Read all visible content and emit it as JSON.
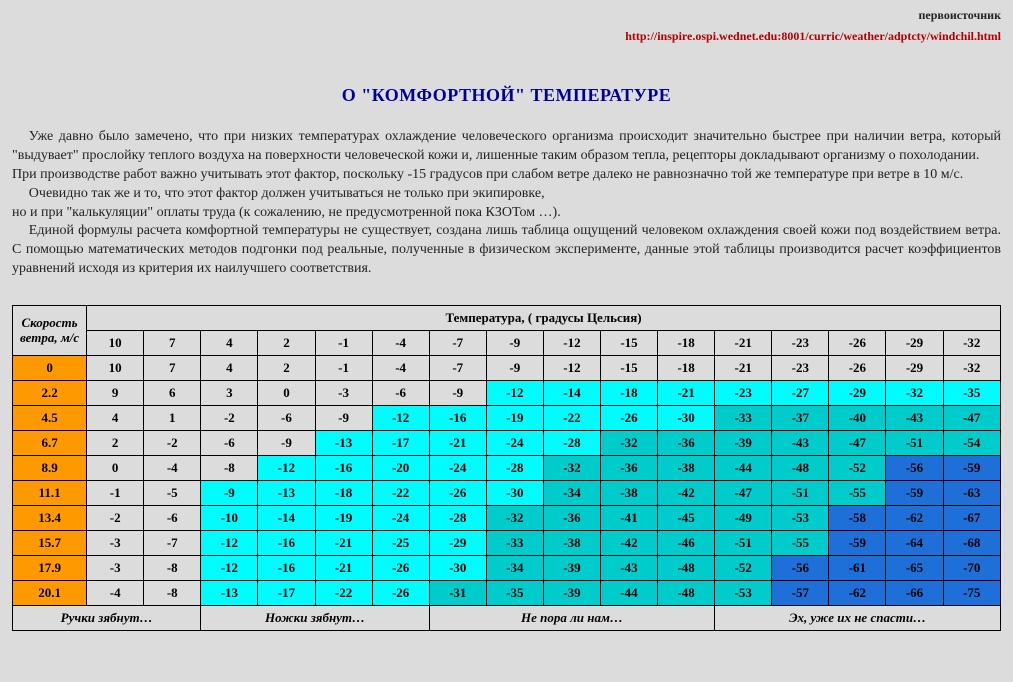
{
  "source_label": "первоисточник",
  "source_url": "http://inspire.ospi.wednet.edu:8001/curric/weather/adptcty/windchil.html",
  "title": "О \"КОМФОРТНОЙ\" ТЕМПЕРАТУРЕ",
  "para1": "Уже давно было замечено, что при низких температурах охлаждение человеческого организма происходит значительно быстрее при наличии ветра, который \"выдувает\" прослойку теплого воздуха на поверхности человеческой кожи и, лишенные таким образом тепла,  рецепторы докладывают организму о похолодании.",
  "para2": "При производстве работ важно учитывать этот фактор, поскольку -15 градусов при слабом  ветре далеко не равнозначно той же температуре при ветре в 10 м/с.",
  "para3": "Очевидно так же и то, что этот фактор должен учитываться не только при экипировке,",
  "para4": "но и при \"калькуляции\" оплаты труда (к сожалению, не предусмотренной пока КЗОТом …).",
  "para5": "Единой формулы расчета комфортной температуры не существует, создана лишь таблица ощущений человеком охлаждения своей кожи под воздействием ветра. С помощью математических методов подгонки под реальные, полученные в физическом эксперименте, данные этой таблицы производится расчет  коэффициентов уравнений исходя из критерия их наилучшего соответствия.",
  "table": {
    "speed_header_l1": "Скорость",
    "speed_header_l2": "ветра, м/с",
    "temp_header": "Температура, ( градусы Цельсия)",
    "temps": [
      "10",
      "7",
      "4",
      "2",
      "-1",
      "-4",
      "-7",
      "-9",
      "-12",
      "-15",
      "-18",
      "-21",
      "-23",
      "-26",
      "-29",
      "-32"
    ],
    "rows": [
      {
        "speed": "0"
      },
      {
        "speed": "2.2",
        "vals": [
          "9",
          "6",
          "3",
          "0",
          "-3",
          "-6",
          "-9",
          "-12",
          "-14",
          "-18",
          "-21",
          "-23",
          "-27",
          "-29",
          "-32",
          "-35"
        ],
        "cls": [
          "plain",
          "plain",
          "plain",
          "plain",
          "plain",
          "plain",
          "plain",
          "c1",
          "c1",
          "c1",
          "c1",
          "c1",
          "c1",
          "c1",
          "c1",
          "c1"
        ]
      },
      {
        "speed": "4.5",
        "vals": [
          "4",
          "1",
          "-2",
          "-6",
          "-9",
          "-12",
          "-16",
          "-19",
          "-22",
          "-26",
          "-30",
          "-33",
          "-37",
          "-40",
          "-43",
          "-47"
        ],
        "cls": [
          "plain",
          "plain",
          "plain",
          "plain",
          "plain",
          "c1",
          "c1",
          "c1",
          "c1",
          "c1",
          "c1",
          "c2",
          "c2",
          "c2",
          "c2",
          "c2"
        ]
      },
      {
        "speed": "6.7",
        "vals": [
          "2",
          "-2",
          "-6",
          "-9",
          "-13",
          "-17",
          "-21",
          "-24",
          "-28",
          "-32",
          "-36",
          "-39",
          "-43",
          "-47",
          "-51",
          "-54"
        ],
        "cls": [
          "plain",
          "plain",
          "plain",
          "plain",
          "c1",
          "c1",
          "c1",
          "c1",
          "c1",
          "c2",
          "c2",
          "c2",
          "c2",
          "c2",
          "c2",
          "c2"
        ]
      },
      {
        "speed": "8.9",
        "vals": [
          "0",
          "-4",
          "-8",
          "-12",
          "-16",
          "-20",
          "-24",
          "-28",
          "-32",
          "-36",
          "-38",
          "-44",
          "-48",
          "-52",
          "-56",
          "-59"
        ],
        "cls": [
          "plain",
          "plain",
          "plain",
          "c1",
          "c1",
          "c1",
          "c1",
          "c1",
          "c2",
          "c2",
          "c2",
          "c2",
          "c2",
          "c2",
          "c3",
          "c3"
        ]
      },
      {
        "speed": "11.1",
        "vals": [
          "-1",
          "-5",
          "-9",
          "-13",
          "-18",
          "-22",
          "-26",
          "-30",
          "-34",
          "-38",
          "-42",
          "-47",
          "-51",
          "-55",
          "-59",
          "-63"
        ],
        "cls": [
          "plain",
          "plain",
          "c1",
          "c1",
          "c1",
          "c1",
          "c1",
          "c1",
          "c2",
          "c2",
          "c2",
          "c2",
          "c2",
          "c2",
          "c3",
          "c3"
        ]
      },
      {
        "speed": "13.4",
        "vals": [
          "-2",
          "-6",
          "-10",
          "-14",
          "-19",
          "-24",
          "-28",
          "-32",
          "-36",
          "-41",
          "-45",
          "-49",
          "-53",
          "-58",
          "-62",
          "-67"
        ],
        "cls": [
          "plain",
          "plain",
          "c1",
          "c1",
          "c1",
          "c1",
          "c1",
          "c2",
          "c2",
          "c2",
          "c2",
          "c2",
          "c2",
          "c3",
          "c3",
          "c3"
        ]
      },
      {
        "speed": "15.7",
        "vals": [
          "-3",
          "-7",
          "-12",
          "-16",
          "-21",
          "-25",
          "-29",
          "-33",
          "-38",
          "-42",
          "-46",
          "-51",
          "-55",
          "-59",
          "-64",
          "-68"
        ],
        "cls": [
          "plain",
          "plain",
          "c1",
          "c1",
          "c1",
          "c1",
          "c1",
          "c2",
          "c2",
          "c2",
          "c2",
          "c2",
          "c2",
          "c3",
          "c3",
          "c3"
        ]
      },
      {
        "speed": "17.9",
        "vals": [
          "-3",
          "-8",
          "-12",
          "-16",
          "-21",
          "-26",
          "-30",
          "-34",
          "-39",
          "-43",
          "-48",
          "-52",
          "-56",
          "-61",
          "-65",
          "-70"
        ],
        "cls": [
          "plain",
          "plain",
          "c1",
          "c1",
          "c1",
          "c1",
          "c1",
          "c2",
          "c2",
          "c2",
          "c2",
          "c2",
          "c3",
          "c3",
          "c3",
          "c3"
        ]
      },
      {
        "speed": "20.1",
        "vals": [
          "-4",
          "-8",
          "-13",
          "-17",
          "-22",
          "-26",
          "-31",
          "-35",
          "-39",
          "-44",
          "-48",
          "-53",
          "-57",
          "-62",
          "-66",
          "-75"
        ],
        "cls": [
          "plain",
          "plain",
          "c1",
          "c1",
          "c1",
          "c1",
          "c2",
          "c2",
          "c2",
          "c2",
          "c2",
          "c2",
          "c3",
          "c3",
          "c3",
          "c3"
        ]
      }
    ],
    "footer": [
      "Ручки зябнут…",
      "Ножки зябнут…",
      "Не пора ли нам…",
      "Эх, уже их не спасти…"
    ],
    "footer_spans": [
      3,
      4,
      5,
      5
    ]
  },
  "colors": {
    "page_bg": "#dcdcdc",
    "title_color": "#000099",
    "link_color": "#b00000",
    "orange": "#ff9900",
    "cyan_bright": "#00fcfc",
    "cyan_dark": "#00cccc",
    "blue": "#1e70d8",
    "border": "#000000"
  }
}
